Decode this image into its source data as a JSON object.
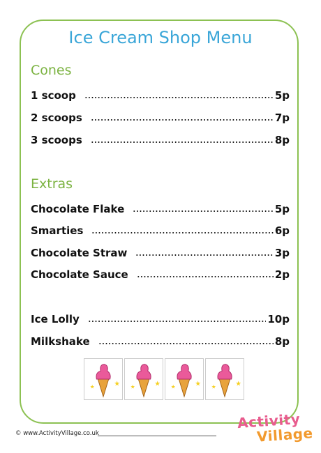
{
  "title": "Ice Cream Shop Menu",
  "sections": [
    {
      "heading": "Cones",
      "items": [
        {
          "name": "1 scoop",
          "price": "5p"
        },
        {
          "name": "2 scoops",
          "price": "7p"
        },
        {
          "name": "3 scoops",
          "price": "8p"
        }
      ]
    },
    {
      "heading": "Extras",
      "items": [
        {
          "name": "Chocolate Flake",
          "price": "5p"
        },
        {
          "name": "Smarties",
          "price": "6p"
        },
        {
          "name": "Chocolate Straw",
          "price": "3p"
        },
        {
          "name": "Chocolate Sauce",
          "price": "2p"
        }
      ]
    },
    {
      "items": [
        {
          "name": "Ice Lolly",
          "price": "10p"
        },
        {
          "name": "Milkshake",
          "price": "8p"
        }
      ]
    }
  ],
  "footer": {
    "url": "© www.ActivityVillage.co.uk",
    "logo_top": "Activity",
    "logo_bottom": "Village"
  }
}
